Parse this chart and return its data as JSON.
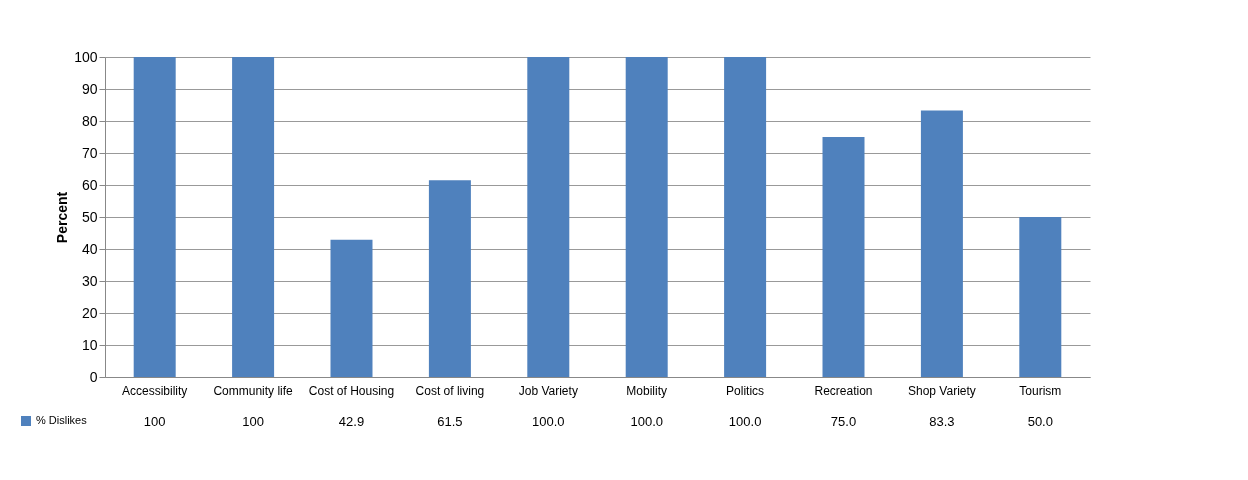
{
  "chart_data": {
    "type": "bar",
    "ylabel": "Percent",
    "categories": [
      "Accessibility",
      "Community life",
      "Cost of Housing",
      "Cost of living",
      "Job Variety",
      "Mobility",
      "Politics",
      "Recreation",
      "Shop Variety",
      "Tourism"
    ],
    "series": [
      {
        "name": "% Dislikes",
        "color": "#4f81bd",
        "values": [
          100,
          100,
          42.9,
          61.5,
          100,
          100,
          100,
          75,
          83.3,
          50
        ],
        "value_labels": [
          "100",
          "100",
          "42.9",
          "61.5",
          "100.0",
          "100.0",
          "100.0",
          "75.0",
          "83.3",
          "50.0"
        ]
      }
    ],
    "ylim": [
      0,
      100
    ],
    "yticks": [
      0,
      10,
      20,
      30,
      40,
      50,
      60,
      70,
      80,
      90,
      100
    ],
    "grid": "y",
    "legend": "bottom left"
  }
}
